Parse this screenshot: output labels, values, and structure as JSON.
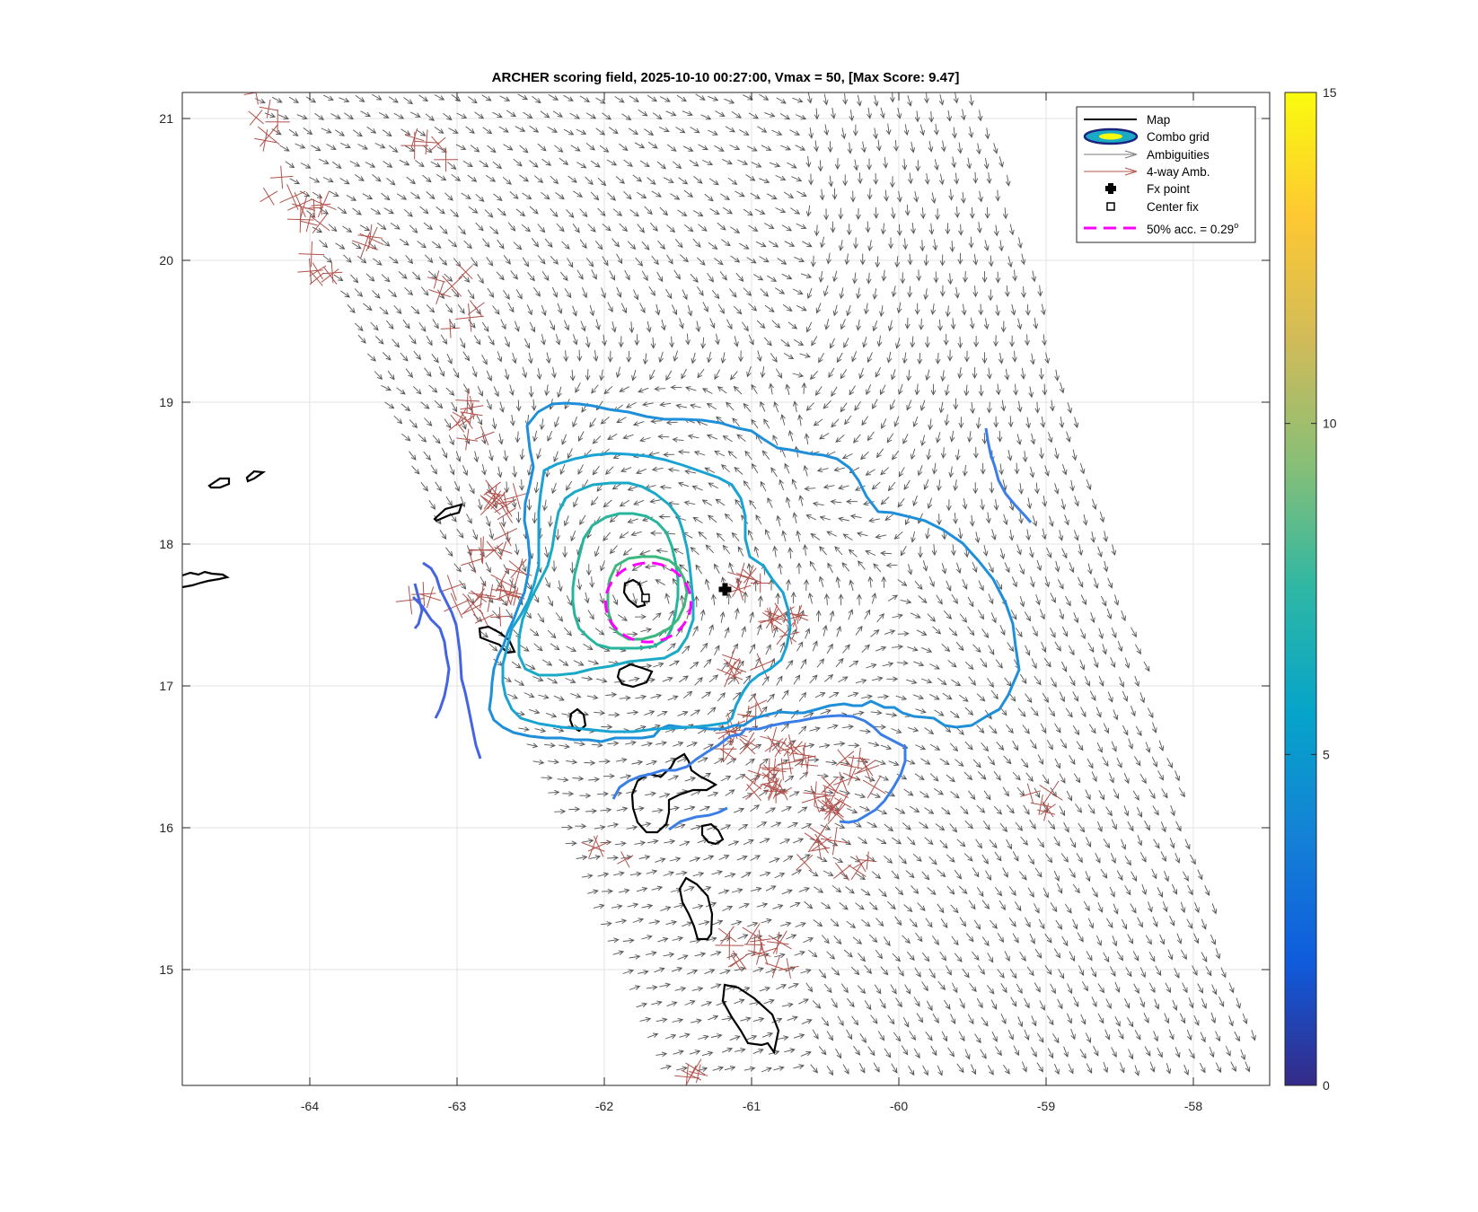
{
  "title": "ARCHER scoring field, 2025-10-10 00:27:00, Vmax = 50, [Max Score: 9.47]",
  "axes": {
    "x_ticks": [
      "-64",
      "-63",
      "-62",
      "-61",
      "-60",
      "-59",
      "-58"
    ],
    "y_ticks": [
      "15",
      "16",
      "17",
      "18",
      "19",
      "20",
      "21"
    ]
  },
  "colorbar": {
    "ticks": [
      "0",
      "5",
      "10",
      "15"
    ],
    "colors": [
      "#352a87",
      "#0f5cdd",
      "#1481d6",
      "#06a4ca",
      "#2eb7a4",
      "#87bf77",
      "#d1bb59",
      "#fec832",
      "#f9fb0e"
    ]
  },
  "legend": {
    "items": [
      {
        "key": "map",
        "label": "Map"
      },
      {
        "key": "combo",
        "label": "Combo grid"
      },
      {
        "key": "amb",
        "label": "Ambiguities"
      },
      {
        "key": "fourway",
        "label": "4-way Amb."
      },
      {
        "key": "fx",
        "label": "Fx point"
      },
      {
        "key": "center",
        "label": "Center fix"
      },
      {
        "key": "acc",
        "label": "50% acc. = 0.29",
        "suffix": "o"
      }
    ]
  },
  "map_data": {
    "fx_point": {
      "lon": -61.18,
      "lat": 17.68
    },
    "center_fix": {
      "lon": -61.72,
      "lat": 17.62
    },
    "accuracy_radius_deg": 0.29,
    "contour_colors": [
      "#1f8fd9",
      "#18a3d2",
      "#1aaac6",
      "#27b59d",
      "#3cb77e",
      "#3b7ee6",
      "#4464e0"
    ],
    "vector_color": "#555555",
    "fourway_color": "#b0504a",
    "accuracy_color": "#ff00ff"
  }
}
